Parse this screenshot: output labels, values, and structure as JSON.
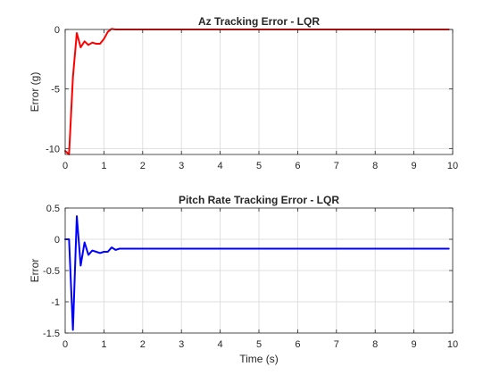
{
  "chart_data": [
    {
      "type": "line",
      "title": "Az Tracking Error - LQR",
      "xlabel": "",
      "ylabel": "Error (g)",
      "xlim": [
        0,
        10
      ],
      "ylim": [
        -10.5,
        0
      ],
      "xticks": [
        0,
        1,
        2,
        3,
        4,
        5,
        6,
        7,
        8,
        9,
        10
      ],
      "yticks": [
        0,
        -5,
        -10
      ],
      "grid": true,
      "series": [
        {
          "color": "#ff0000",
          "x": [
            0.0,
            0.1,
            0.2,
            0.3,
            0.4,
            0.5,
            0.6,
            0.7,
            0.8,
            0.9,
            1.0,
            1.1,
            1.2,
            1.3,
            1.4,
            1.6,
            2.0,
            3.0,
            4.0,
            5.0,
            6.0,
            7.0,
            8.0,
            9.0,
            9.9
          ],
          "values": [
            -10.2,
            -10.5,
            -4.0,
            -0.3,
            -1.5,
            -1.0,
            -1.3,
            -1.1,
            -1.2,
            -1.2,
            -0.8,
            -0.2,
            0.05,
            0.0,
            0.0,
            0.0,
            0.0,
            0.0,
            0.0,
            0.0,
            0.0,
            0.0,
            0.0,
            0.0,
            0.0
          ]
        }
      ]
    },
    {
      "type": "line",
      "title": "Pitch Rate Tracking Error - LQR",
      "xlabel": "Time (s)",
      "ylabel": "Error",
      "xlim": [
        0,
        10
      ],
      "ylim": [
        -1.5,
        0.5
      ],
      "xticks": [
        0,
        1,
        2,
        3,
        4,
        5,
        6,
        7,
        8,
        9,
        10
      ],
      "yticks": [
        0.5,
        0,
        -0.5,
        -1,
        -1.5
      ],
      "grid": true,
      "series": [
        {
          "color": "#0000ff",
          "x": [
            0.0,
            0.1,
            0.2,
            0.3,
            0.4,
            0.5,
            0.6,
            0.7,
            0.8,
            0.9,
            1.0,
            1.1,
            1.2,
            1.3,
            1.4,
            1.5,
            2.0,
            3.0,
            4.0,
            5.0,
            6.0,
            7.0,
            8.0,
            9.0,
            9.9
          ],
          "values": [
            0.0,
            0.0,
            -1.45,
            0.37,
            -0.42,
            -0.05,
            -0.25,
            -0.18,
            -0.2,
            -0.22,
            -0.2,
            -0.2,
            -0.13,
            -0.17,
            -0.15,
            -0.15,
            -0.15,
            -0.15,
            -0.15,
            -0.15,
            -0.15,
            -0.15,
            -0.15,
            -0.15,
            -0.15
          ]
        }
      ]
    }
  ]
}
